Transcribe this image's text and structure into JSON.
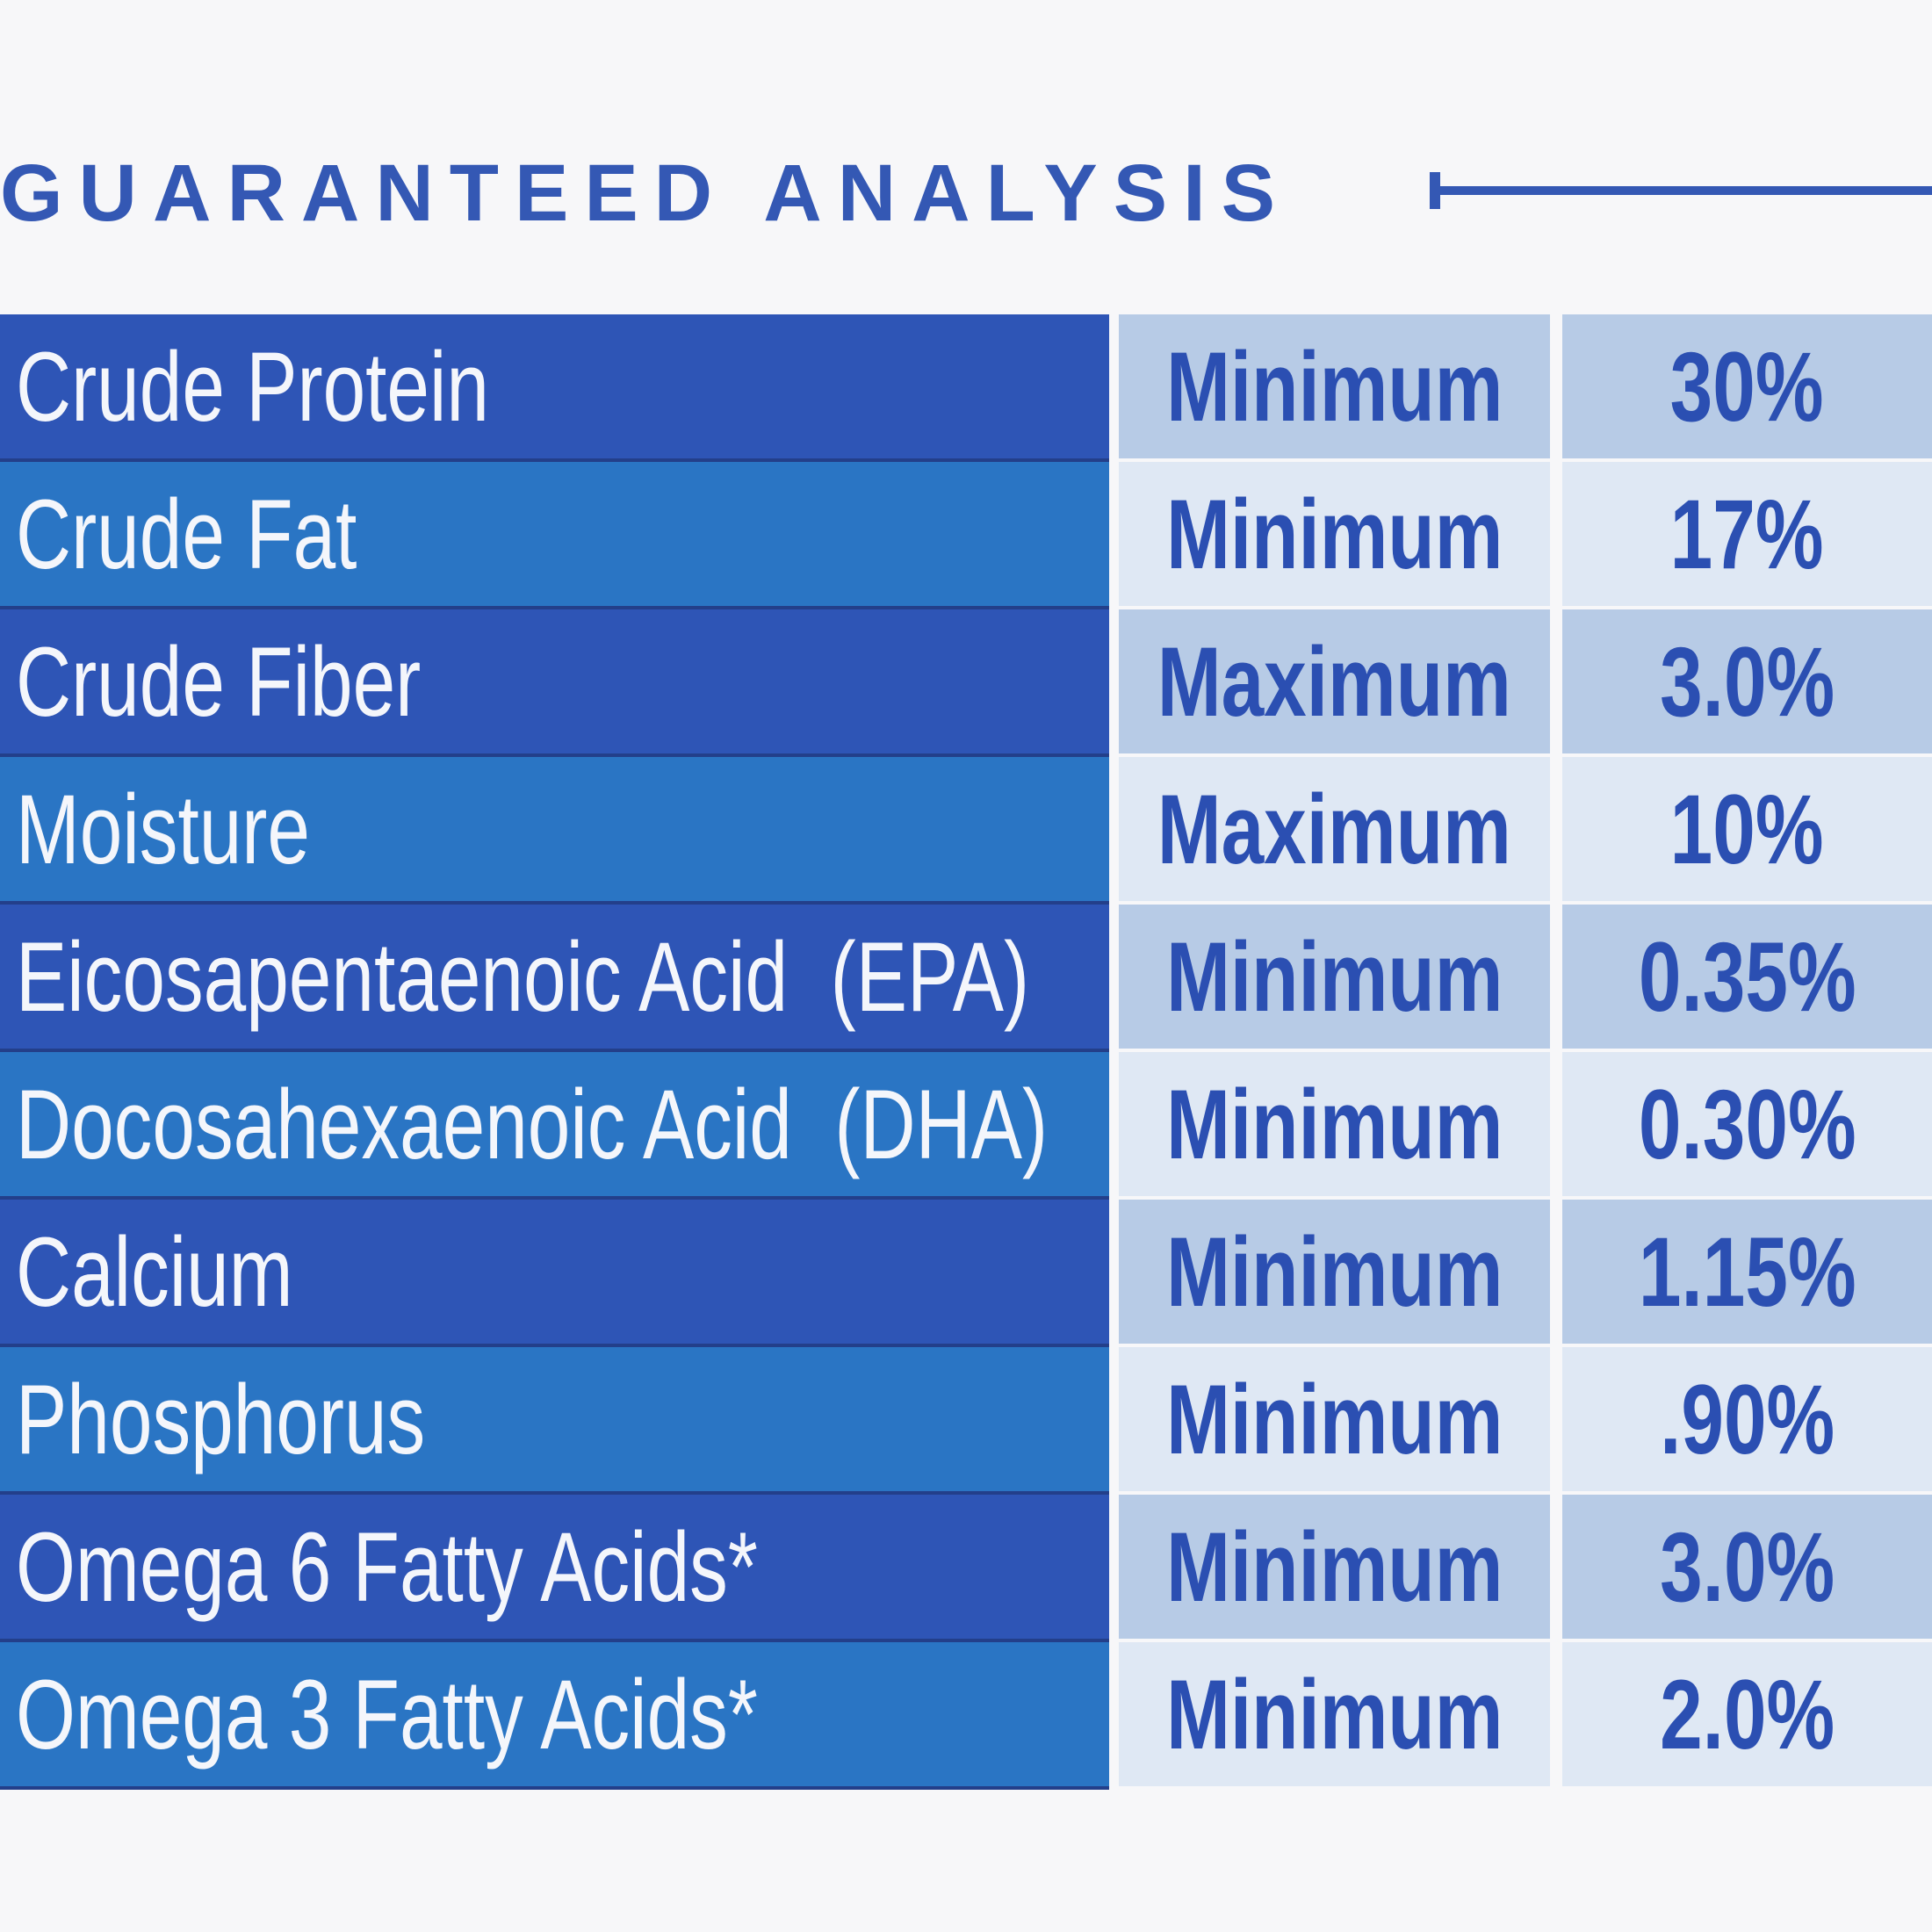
{
  "header": {
    "title": "GUARANTEED ANALYSIS"
  },
  "table": {
    "rows": [
      [
        "Crude Protein",
        "Minimum",
        "30%"
      ],
      [
        "Crude Fat",
        "Minimum",
        "17%"
      ],
      [
        "Crude Fiber",
        "Maximum",
        "3.0%"
      ],
      [
        "Moisture",
        "Maximum",
        "10%"
      ],
      [
        "Eicosapentaenoic Acid  (EPA)",
        "Minimum",
        "0.35%"
      ],
      [
        "Docosahexaenoic Acid  (DHA)",
        "Minimum",
        "0.30%"
      ],
      [
        "Calcium",
        "Minimum",
        "1.15%"
      ],
      [
        "Phosphorus",
        "Minimum",
        ".90%"
      ],
      [
        "Omega 6 Fatty Acids*",
        "Minimum",
        "3.0%"
      ],
      [
        "Omega 3 Fatty Acids*",
        "Minimum",
        "2.0%"
      ]
    ]
  }
}
